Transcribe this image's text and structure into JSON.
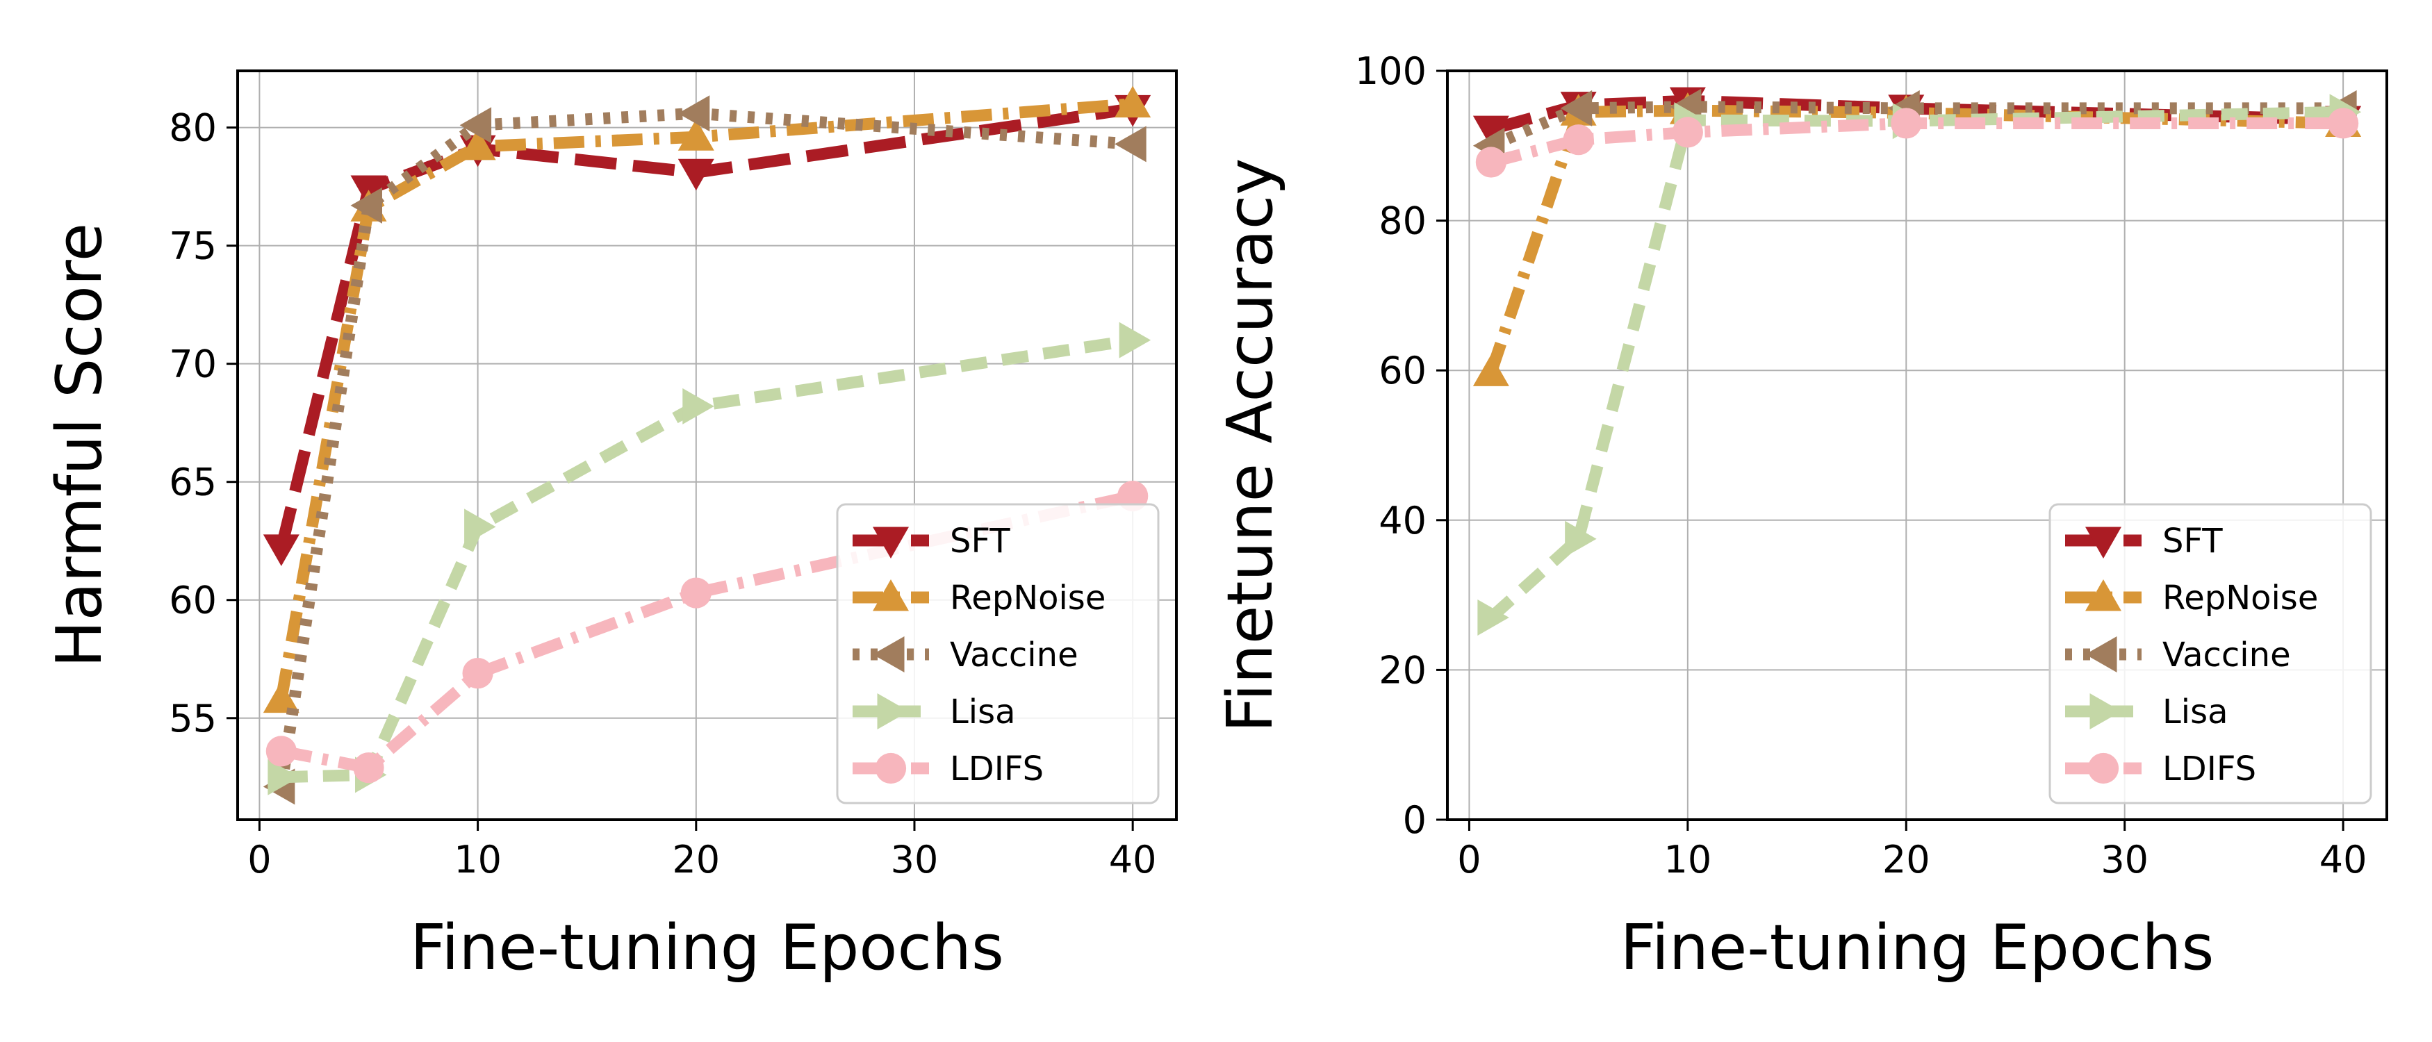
{
  "chart_data": [
    {
      "type": "line",
      "xlabel": "Fine-tuning Epochs",
      "ylabel": "Harmful Score",
      "xlim": [
        -1,
        42
      ],
      "ylim": [
        50.7,
        82.4
      ],
      "xticks": [
        0,
        10,
        20,
        30,
        40
      ],
      "yticks": [
        55,
        60,
        65,
        70,
        75,
        80
      ],
      "grid": true,
      "legend_position": "lower-right",
      "x": [
        1,
        5,
        10,
        20,
        40
      ],
      "series": [
        {
          "name": "SFT",
          "values": [
            62.2,
            77.4,
            79.1,
            78.1,
            80.8
          ],
          "color": "#ab1c24",
          "marker": "triangle-down",
          "dash": "long-dash"
        },
        {
          "name": "RepNoise",
          "values": [
            55.8,
            76.6,
            79.2,
            79.6,
            81.0
          ],
          "color": "#d89637",
          "marker": "triangle-up",
          "dash": "dash-dot"
        },
        {
          "name": "Vaccine",
          "values": [
            52.1,
            76.7,
            80.1,
            80.6,
            79.3
          ],
          "color": "#a17d5d",
          "marker": "triangle-left",
          "dash": "dotted"
        },
        {
          "name": "Lisa",
          "values": [
            52.5,
            52.6,
            63.1,
            68.2,
            71.0
          ],
          "color": "#c4d7a6",
          "marker": "triangle-right",
          "dash": "dashed"
        },
        {
          "name": "LDIFS",
          "values": [
            53.6,
            52.9,
            56.9,
            60.3,
            64.4
          ],
          "color": "#f7b6bd",
          "marker": "circle",
          "dash": "dash-dot"
        }
      ]
    },
    {
      "type": "line",
      "xlabel": "Fine-tuning Epochs",
      "ylabel": "Finetune Accuracy",
      "xlim": [
        -1,
        42
      ],
      "ylim": [
        0,
        100
      ],
      "xticks": [
        0,
        10,
        20,
        30,
        40
      ],
      "yticks": [
        0,
        20,
        40,
        60,
        80,
        100
      ],
      "grid": true,
      "legend_position": "lower-right",
      "x": [
        1,
        5,
        10,
        20,
        40
      ],
      "series": [
        {
          "name": "SFT",
          "values": [
            92.2,
            95.4,
            96.0,
            95.0,
            93.5
          ],
          "color": "#ab1c24",
          "marker": "triangle-down",
          "dash": "long-dash"
        },
        {
          "name": "RepNoise",
          "values": [
            59.7,
            94.5,
            94.7,
            94.4,
            93.0
          ],
          "color": "#d89637",
          "marker": "triangle-up",
          "dash": "dash-dot"
        },
        {
          "name": "Vaccine",
          "values": [
            90.0,
            95.0,
            95.2,
            95.0,
            95.0
          ],
          "color": "#a17d5d",
          "marker": "triangle-left",
          "dash": "dotted"
        },
        {
          "name": "Lisa",
          "values": [
            27.0,
            37.5,
            93.4,
            93.3,
            94.5
          ],
          "color": "#c4d7a6",
          "marker": "triangle-right",
          "dash": "dashed"
        },
        {
          "name": "LDIFS",
          "values": [
            87.8,
            90.8,
            91.8,
            93.0,
            93.0
          ],
          "color": "#f7b6bd",
          "marker": "circle",
          "dash": "dash-dot"
        }
      ]
    }
  ]
}
